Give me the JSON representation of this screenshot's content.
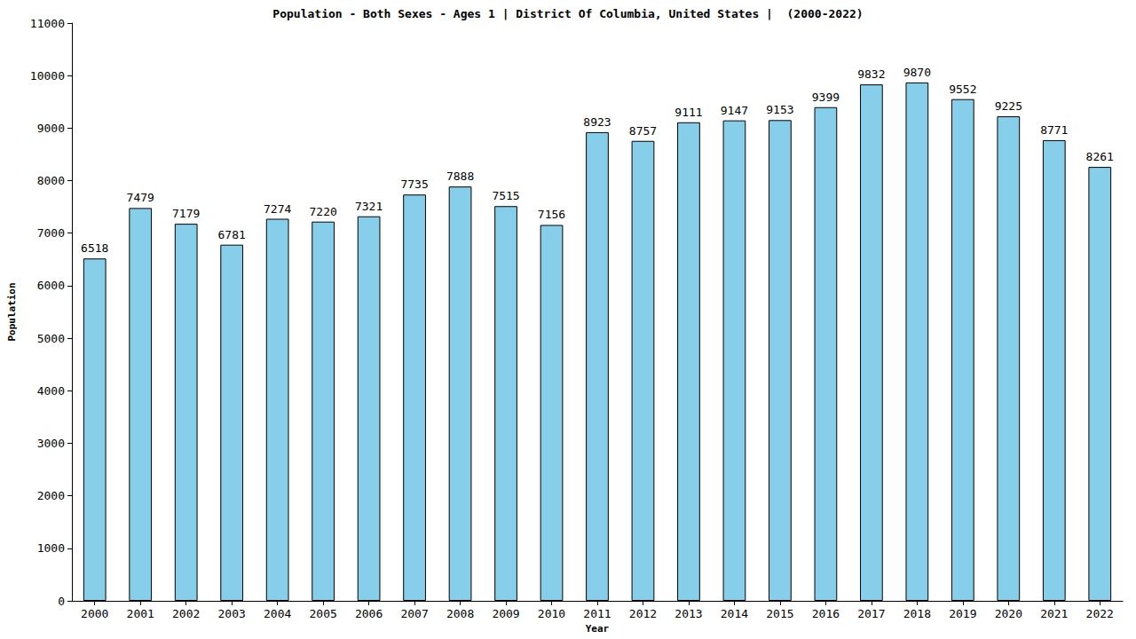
{
  "chart_data": {
    "type": "bar",
    "title": "Population - Both Sexes - Ages 1 | District Of Columbia, United States |  (2000-2022)",
    "x_label": "Year",
    "y_label": "Population",
    "categories": [
      "2000",
      "2001",
      "2002",
      "2003",
      "2004",
      "2005",
      "2006",
      "2007",
      "2008",
      "2009",
      "2010",
      "2011",
      "2012",
      "2013",
      "2014",
      "2015",
      "2016",
      "2017",
      "2018",
      "2019",
      "2020",
      "2021",
      "2022"
    ],
    "values": [
      6518,
      7479,
      7179,
      6781,
      7274,
      7220,
      7321,
      7735,
      7888,
      7515,
      7156,
      8923,
      8757,
      9111,
      9147,
      9153,
      9399,
      9832,
      9870,
      9552,
      9225,
      8771,
      8261
    ],
    "color": "#87ceeb",
    "ylim": [
      0,
      11000
    ],
    "yticks": [
      0,
      1000,
      2000,
      3000,
      4000,
      5000,
      6000,
      7000,
      8000,
      9000,
      10000,
      11000
    ],
    "grid": false,
    "data_labels": true
  }
}
